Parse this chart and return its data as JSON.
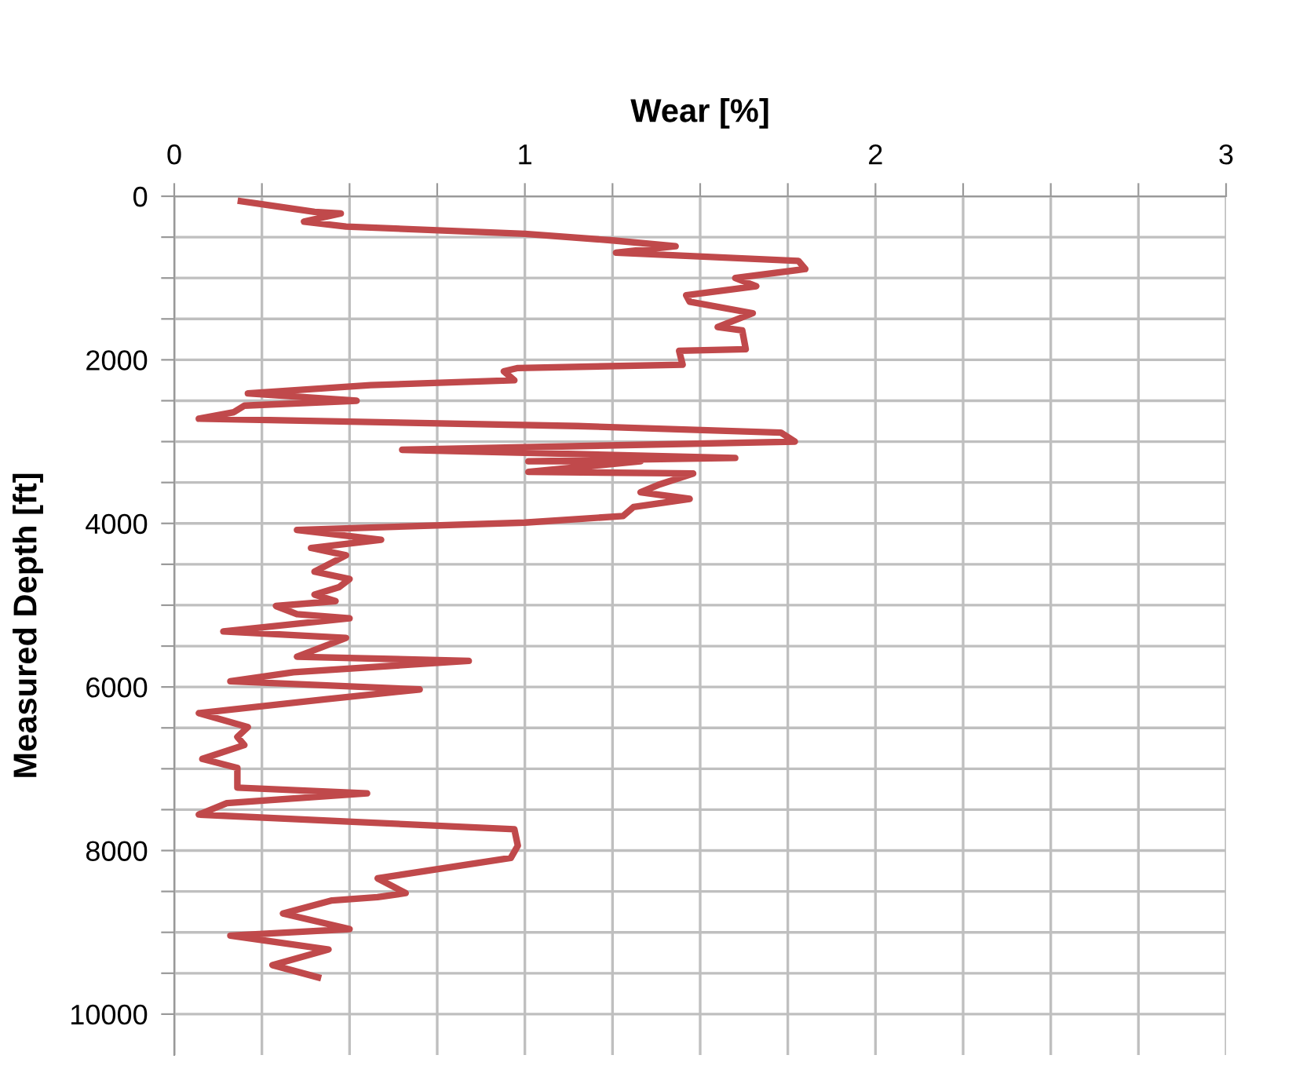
{
  "chart_data": {
    "type": "line",
    "xlabel": "Wear [%]",
    "ylabel": "Measured Depth [ft]",
    "series": [
      {
        "color": "#c0494b",
        "x": [
          0.19,
          0.4,
          0.475,
          0.37,
          0.49,
          1.0,
          1.25,
          1.43,
          1.26,
          1.78,
          1.8,
          1.6,
          1.66,
          1.46,
          1.47,
          1.65,
          1.55,
          1.62,
          1.63,
          1.44,
          1.45,
          0.98,
          0.94,
          0.97,
          0.56,
          0.21,
          0.52,
          0.2,
          0.17,
          0.07,
          1.15,
          1.73,
          1.77,
          0.65,
          1.6,
          1.01,
          1.33,
          1.01,
          1.48,
          1.38,
          1.33,
          1.47,
          1.31,
          1.28,
          1.0,
          0.35,
          0.59,
          0.39,
          0.49,
          0.4,
          0.5,
          0.47,
          0.4,
          0.46,
          0.29,
          0.35,
          0.5,
          0.14,
          0.49,
          0.35,
          0.84,
          0.34,
          0.16,
          0.7,
          0.43,
          0.07,
          0.21,
          0.18,
          0.2,
          0.08,
          0.18,
          0.18,
          0.55,
          0.15,
          0.07,
          0.52,
          0.97,
          0.98,
          0.96,
          0.58,
          0.66,
          0.58,
          0.45,
          0.31,
          0.5,
          0.16,
          0.44,
          0.28,
          0.41
        ],
        "values": [
          60,
          190,
          210,
          310,
          370,
          460,
          540,
          610,
          690,
          790,
          890,
          1000,
          1100,
          1210,
          1290,
          1430,
          1600,
          1640,
          1870,
          1890,
          2060,
          2100,
          2140,
          2250,
          2310,
          2410,
          2500,
          2560,
          2640,
          2720,
          2810,
          2890,
          3000,
          3100,
          3200,
          3240,
          3240,
          3370,
          3390,
          3530,
          3620,
          3700,
          3800,
          3910,
          3990,
          4080,
          4200,
          4300,
          4390,
          4590,
          4680,
          4780,
          4870,
          4950,
          5010,
          5110,
          5160,
          5320,
          5400,
          5630,
          5680,
          5820,
          5930,
          6030,
          6150,
          6320,
          6490,
          6610,
          6710,
          6880,
          6990,
          7230,
          7300,
          7420,
          7560,
          7650,
          7740,
          7940,
          8090,
          8340,
          8520,
          8570,
          8610,
          8770,
          8960,
          9040,
          9210,
          9400,
          9550
        ]
      }
    ],
    "xlim": [
      0,
      3
    ],
    "ylim": [
      10500,
      0
    ],
    "xticks": [
      0,
      {
        "value": 0.25,
        "label": null
      },
      {
        "value": 0.5,
        "label": null
      },
      {
        "value": 0.75,
        "label": null
      },
      1,
      {
        "value": 1.25,
        "label": null
      },
      {
        "value": 1.5,
        "label": null
      },
      {
        "value": 1.75,
        "label": null
      },
      2,
      {
        "value": 2.25,
        "label": null
      },
      {
        "value": 2.5,
        "label": null
      },
      {
        "value": 2.75,
        "label": null
      },
      3
    ],
    "yticks": [
      0,
      {
        "value": 500,
        "label": null
      },
      {
        "value": 1000,
        "label": null
      },
      {
        "value": 1500,
        "label": null
      },
      2000,
      {
        "value": 2500,
        "label": null
      },
      {
        "value": 3000,
        "label": null
      },
      {
        "value": 3500,
        "label": null
      },
      4000,
      {
        "value": 4500,
        "label": null
      },
      {
        "value": 5000,
        "label": null
      },
      {
        "value": 5500,
        "label": null
      },
      6000,
      {
        "value": 6500,
        "label": null
      },
      {
        "value": 7000,
        "label": null
      },
      {
        "value": 7500,
        "label": null
      },
      8000,
      {
        "value": 8500,
        "label": null
      },
      {
        "value": 9000,
        "label": null
      },
      {
        "value": 9500,
        "label": null
      },
      10000
    ],
    "grid": true,
    "line_style": "solid",
    "marker": "none"
  }
}
